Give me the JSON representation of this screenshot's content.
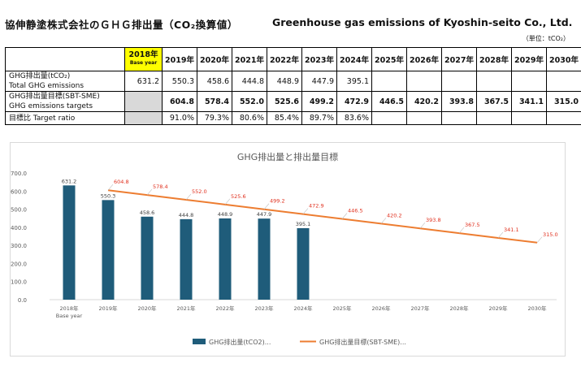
{
  "header": {
    "title_ja": "協伸静塗株式会社のＧＨＧ排出量（CO₂換算値）",
    "title_en": "Greenhouse gas emissions of Kyoshin-seito Co., Ltd.",
    "unit": "（単位：tCO₂）"
  },
  "table": {
    "base_year": {
      "label": "2018年",
      "sub": "Base year"
    },
    "years": [
      "2019年",
      "2020年",
      "2021年",
      "2022年",
      "2023年",
      "2024年",
      "2025年",
      "2026年",
      "2027年",
      "2028年",
      "2029年",
      "2030年"
    ],
    "rows": {
      "ghg": {
        "label_ja": "GHG排出量(tCO₂)",
        "label_en": "Total GHG emissions",
        "base": "631.2",
        "values": [
          "550.3",
          "458.6",
          "444.8",
          "448.9",
          "447.9",
          "395.1",
          "",
          "",
          "",
          "",
          "",
          ""
        ]
      },
      "target": {
        "label_ja": "GHG排出量目標(SBT-SME)",
        "label_en": "GHG emissions targets",
        "base": "",
        "values": [
          "604.8",
          "578.4",
          "552.0",
          "525.6",
          "499.2",
          "472.9",
          "446.5",
          "420.2",
          "393.8",
          "367.5",
          "341.1",
          "315.0"
        ]
      },
      "ratio": {
        "label": "目標比 Target ratio",
        "base": "",
        "values": [
          "91.0%",
          "79.3%",
          "80.6%",
          "85.4%",
          "89.7%",
          "83.6%",
          "",
          "",
          "",
          "",
          "",
          ""
        ]
      }
    }
  },
  "chart_data": {
    "type": "bar",
    "title": "GHG排出量と排出量目標",
    "categories": [
      "2018年",
      "2019年",
      "2020年",
      "2021年",
      "2022年",
      "2023年",
      "2024年",
      "2025年",
      "2026年",
      "2027年",
      "2028年",
      "2029年",
      "2030年"
    ],
    "first_category_sub": "Base year",
    "ylim": [
      0,
      700
    ],
    "yticks": [
      "0.0",
      "100.0",
      "200.0",
      "300.0",
      "400.0",
      "500.0",
      "600.0",
      "700.0"
    ],
    "grid": false,
    "legend_position": "bottom",
    "series": [
      {
        "name": "GHG排出量(tCO2)...",
        "kind": "bar",
        "color": "#1f5c7a",
        "values": [
          631.2,
          550.3,
          458.6,
          444.8,
          448.9,
          447.9,
          395.1,
          null,
          null,
          null,
          null,
          null,
          null
        ],
        "labels": [
          "631.2",
          "550.3",
          "458.6",
          "444.8",
          "448.9",
          "447.9",
          "395.1",
          null,
          null,
          null,
          null,
          null,
          null
        ]
      },
      {
        "name": "GHG排出量目標(SBT-SME)...",
        "kind": "line",
        "color": "#ed7d31",
        "label_color": "#e0301e",
        "values": [
          null,
          604.8,
          578.4,
          552.0,
          525.6,
          499.2,
          472.9,
          446.5,
          420.2,
          393.8,
          367.5,
          341.1,
          315.0
        ],
        "labels": [
          null,
          "604.8",
          "578.4",
          "552.0",
          "525.6",
          "499.2",
          "472.9",
          "446.5",
          "420.2",
          "393.8",
          "367.5",
          "341.1",
          "315.0"
        ]
      }
    ]
  }
}
